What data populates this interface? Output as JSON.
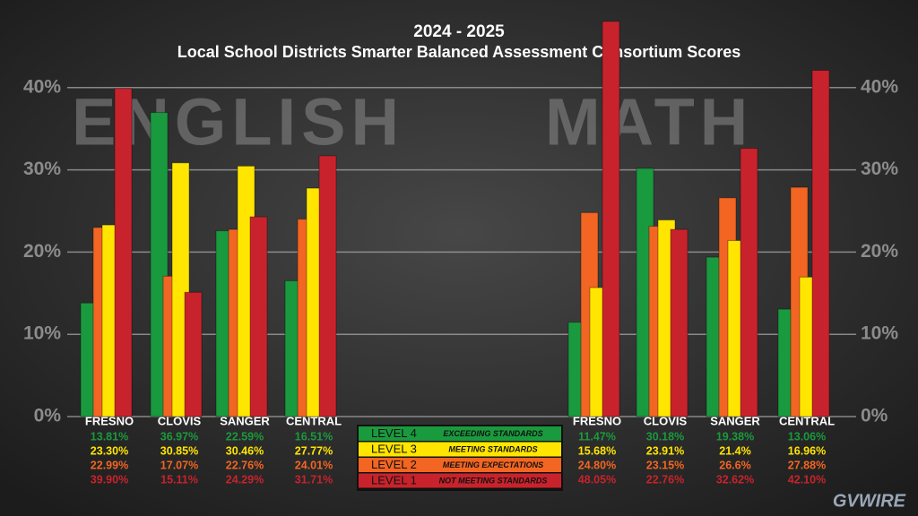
{
  "chart_data": {
    "type": "bar",
    "title": "2024 - 2025",
    "subtitle": "Local School Districts Smarter Balanced Assessment Consortium Scores",
    "panels": [
      "ENGLISH",
      "MATH"
    ],
    "categories": [
      "FRESNO",
      "CLOVIS",
      "SANGER",
      "CENTRAL",
      "FRESNO",
      "CLOVIS",
      "SANGER",
      "CENTRAL"
    ],
    "series": [
      {
        "name": "LEVEL 4",
        "description": "EXCEEDING STANDARDS",
        "color": "#1a9a3e",
        "values": [
          13.81,
          36.97,
          22.59,
          16.51,
          11.47,
          30.18,
          19.38,
          13.06
        ],
        "value_labels": [
          "13.81%",
          "36.97%",
          "22.59%",
          "16.51%",
          "11.47%",
          "30.18%",
          "19.38%",
          "13.06%"
        ]
      },
      {
        "name": "LEVEL 3",
        "description": "MEETING STANDARDS",
        "color": "#ffe500",
        "values": [
          23.3,
          30.85,
          30.46,
          27.77,
          15.68,
          23.91,
          21.4,
          16.96
        ],
        "value_labels": [
          "23.30%",
          "30.85%",
          "30.46%",
          "27.77%",
          "15.68%",
          "23.91%",
          "21.4%",
          "16.96%"
        ]
      },
      {
        "name": "LEVEL 2",
        "description": "MEETING EXPECTATIONS",
        "color": "#f26522",
        "values": [
          22.99,
          17.07,
          22.76,
          24.01,
          24.8,
          23.15,
          26.6,
          27.88
        ],
        "value_labels": [
          "22.99%",
          "17.07%",
          "22.76%",
          "24.01%",
          "24.80%",
          "23.15%",
          "26.6%",
          "27.88%"
        ]
      },
      {
        "name": "LEVEL 1",
        "description": "NOT MEETING STANDARDS",
        "color": "#c8232c",
        "values": [
          39.9,
          15.11,
          24.29,
          31.71,
          48.05,
          22.76,
          32.62,
          42.1
        ],
        "value_labels": [
          "39.90%",
          "15.11%",
          "24.29%",
          "31.71%",
          "48.05%",
          "22.76%",
          "32.62%",
          "42.10%"
        ]
      }
    ],
    "ylim": [
      0,
      50
    ],
    "yticks": [
      {
        "value": 0,
        "label": "0%"
      },
      {
        "value": 10,
        "label": "10%"
      },
      {
        "value": 20,
        "label": "20%"
      },
      {
        "value": 30,
        "label": "30%"
      },
      {
        "value": 40,
        "label": "40%"
      }
    ],
    "grid": true,
    "logo": "GVWIRE"
  }
}
